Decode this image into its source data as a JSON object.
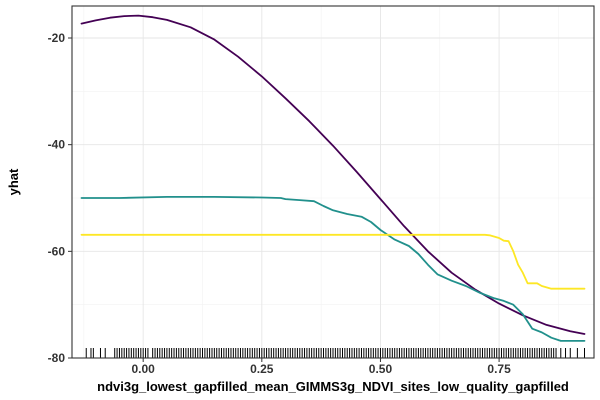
{
  "chart_data": {
    "type": "line",
    "title": "",
    "xlabel": "ndvi3g_lowest_gapfilled_mean_GIMMS3g_NDVI_sites_low_quality_gapfilled",
    "ylabel": "yhat",
    "xlim": [
      -0.15,
      0.95
    ],
    "ylim": [
      -80,
      -14
    ],
    "x_ticks": [
      0.0,
      0.25,
      0.5,
      0.75
    ],
    "x_tick_labels": [
      "0.00",
      "0.25",
      "0.50",
      "0.75"
    ],
    "y_ticks": [
      -80,
      -60,
      -40,
      -20
    ],
    "y_tick_labels": [
      "-80",
      "-60",
      "-40",
      "-20"
    ],
    "grid": true,
    "legend": "none",
    "series": [
      {
        "color": "#440154",
        "x": [
          -0.13,
          -0.1,
          -0.07,
          -0.04,
          -0.01,
          0.02,
          0.05,
          0.1,
          0.15,
          0.2,
          0.25,
          0.3,
          0.35,
          0.4,
          0.45,
          0.5,
          0.55,
          0.6,
          0.65,
          0.7,
          0.75,
          0.8,
          0.85,
          0.9,
          0.93
        ],
        "y": [
          -17.3,
          -16.7,
          -16.2,
          -15.9,
          -15.8,
          -16.1,
          -16.6,
          -18.0,
          -20.3,
          -23.5,
          -27.2,
          -31.3,
          -35.6,
          -40.2,
          -45.1,
          -50.2,
          -55.3,
          -60.0,
          -64.0,
          -67.2,
          -69.8,
          -72.0,
          -73.8,
          -75.0,
          -75.5
        ]
      },
      {
        "color": "#21908C",
        "x": [
          -0.13,
          -0.05,
          0.05,
          0.15,
          0.25,
          0.29,
          0.3,
          0.33,
          0.36,
          0.38,
          0.4,
          0.43,
          0.46,
          0.48,
          0.5,
          0.53,
          0.56,
          0.58,
          0.6,
          0.62,
          0.65,
          0.68,
          0.71,
          0.74,
          0.76,
          0.78,
          0.8,
          0.82,
          0.84,
          0.86,
          0.88,
          0.93
        ],
        "y": [
          -50.0,
          -50.0,
          -49.8,
          -49.8,
          -49.9,
          -50.0,
          -50.2,
          -50.4,
          -50.6,
          -51.5,
          -52.3,
          -53.0,
          -53.5,
          -54.5,
          -56.0,
          -57.8,
          -59.0,
          -60.5,
          -62.5,
          -64.3,
          -65.5,
          -66.5,
          -67.8,
          -68.8,
          -69.3,
          -70.0,
          -71.8,
          -74.5,
          -75.2,
          -76.2,
          -76.8,
          -76.8
        ]
      },
      {
        "color": "#FDE725",
        "x": [
          -0.13,
          0.0,
          0.2,
          0.4,
          0.6,
          0.72,
          0.73,
          0.75,
          0.76,
          0.77,
          0.78,
          0.79,
          0.8,
          0.81,
          0.83,
          0.84,
          0.86,
          0.9,
          0.93
        ],
        "y": [
          -56.9,
          -56.9,
          -56.9,
          -56.9,
          -56.9,
          -56.9,
          -57.0,
          -57.5,
          -58.0,
          -58.1,
          -60.0,
          -62.5,
          -64.0,
          -66.0,
          -66.0,
          -66.5,
          -67.0,
          -67.0,
          -67.0
        ]
      }
    ],
    "rug_x": [
      -0.12,
      -0.11,
      -0.105,
      -0.09,
      -0.08,
      -0.06,
      -0.055,
      -0.05,
      -0.045,
      -0.04,
      -0.035,
      -0.03,
      -0.025,
      -0.02,
      -0.015,
      -0.01,
      -0.005,
      0.0,
      0.005,
      0.01,
      0.02,
      0.025,
      0.03,
      0.035,
      0.04,
      0.045,
      0.05,
      0.055,
      0.06,
      0.065,
      0.07,
      0.075,
      0.08,
      0.085,
      0.09,
      0.095,
      0.1,
      0.105,
      0.11,
      0.115,
      0.12,
      0.125,
      0.13,
      0.135,
      0.14,
      0.145,
      0.15,
      0.155,
      0.16,
      0.165,
      0.17,
      0.175,
      0.18,
      0.185,
      0.19,
      0.195,
      0.2,
      0.205,
      0.21,
      0.215,
      0.22,
      0.225,
      0.23,
      0.235,
      0.24,
      0.245,
      0.25,
      0.255,
      0.26,
      0.265,
      0.27,
      0.275,
      0.28,
      0.285,
      0.29,
      0.295,
      0.3,
      0.305,
      0.31,
      0.315,
      0.32,
      0.325,
      0.33,
      0.335,
      0.34,
      0.345,
      0.35,
      0.355,
      0.36,
      0.365,
      0.37,
      0.375,
      0.38,
      0.385,
      0.39,
      0.395,
      0.4,
      0.405,
      0.41,
      0.415,
      0.42,
      0.425,
      0.43,
      0.435,
      0.44,
      0.445,
      0.45,
      0.455,
      0.46,
      0.465,
      0.47,
      0.475,
      0.48,
      0.485,
      0.49,
      0.495,
      0.5,
      0.505,
      0.51,
      0.515,
      0.52,
      0.525,
      0.53,
      0.535,
      0.54,
      0.545,
      0.55,
      0.555,
      0.56,
      0.565,
      0.57,
      0.575,
      0.58,
      0.585,
      0.59,
      0.595,
      0.6,
      0.605,
      0.61,
      0.615,
      0.62,
      0.625,
      0.63,
      0.635,
      0.64,
      0.645,
      0.65,
      0.655,
      0.66,
      0.665,
      0.67,
      0.675,
      0.68,
      0.685,
      0.69,
      0.695,
      0.7,
      0.705,
      0.71,
      0.715,
      0.72,
      0.725,
      0.73,
      0.735,
      0.74,
      0.745,
      0.75,
      0.755,
      0.76,
      0.765,
      0.77,
      0.775,
      0.78,
      0.785,
      0.79,
      0.795,
      0.8,
      0.805,
      0.81,
      0.815,
      0.82,
      0.825,
      0.83,
      0.835,
      0.84,
      0.845,
      0.85,
      0.855,
      0.86,
      0.865,
      0.87,
      0.88,
      0.89,
      0.9,
      0.915,
      0.93
    ]
  }
}
